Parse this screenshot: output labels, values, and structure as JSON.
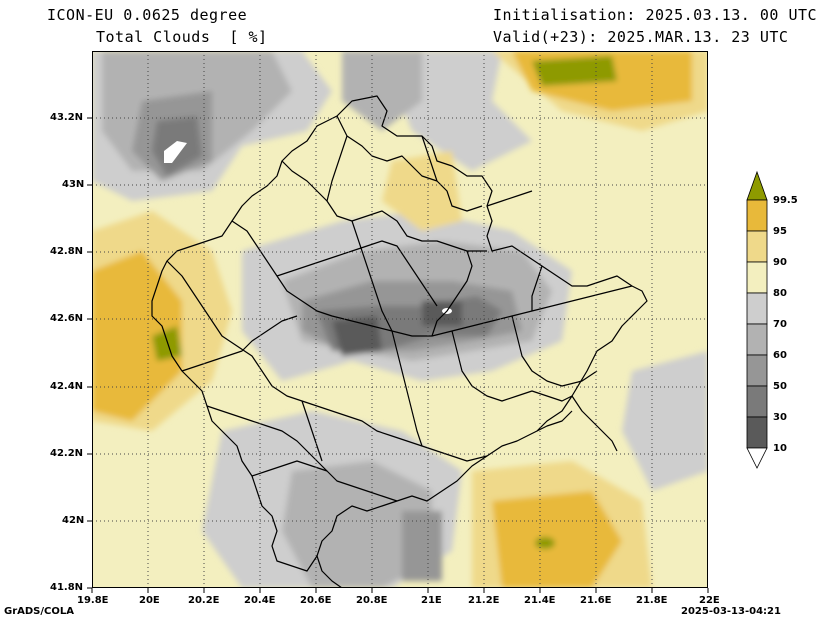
{
  "header": {
    "model": "ICON-EU 0.0625 degree",
    "field": "Total Clouds  [ %]",
    "init": "Initialisation: 2025.03.13. 00 UTC",
    "valid": "Valid(+23): 2025.MAR.13. 23 UTC"
  },
  "axes": {
    "x_ticks": [
      "19.8E",
      "20E",
      "20.2E",
      "20.4E",
      "20.6E",
      "20.8E",
      "21E",
      "21.2E",
      "21.4E",
      "21.6E",
      "21.8E",
      "22E"
    ],
    "y_ticks": [
      "43.2N",
      "43N",
      "42.8N",
      "42.6N",
      "42.4N",
      "42.2N",
      "42N",
      "41.8N"
    ]
  },
  "legend": {
    "levels": [
      "99.5",
      "95",
      "90",
      "80",
      "70",
      "60",
      "50",
      "30",
      "10"
    ],
    "colors": {
      "c0": "#ffffff",
      "c10": "#5a5a5a",
      "c30": "#7a7a7a",
      "c50": "#969696",
      "c60": "#b2b2b2",
      "c70": "#cecece",
      "c80": "#f3efbf",
      "c90": "#efd98a",
      "c95": "#e8b93a",
      "c99": "#8e9a00"
    }
  },
  "footer": {
    "left": "GrADS/COLA",
    "right": "2025-03-13-04:21"
  }
}
